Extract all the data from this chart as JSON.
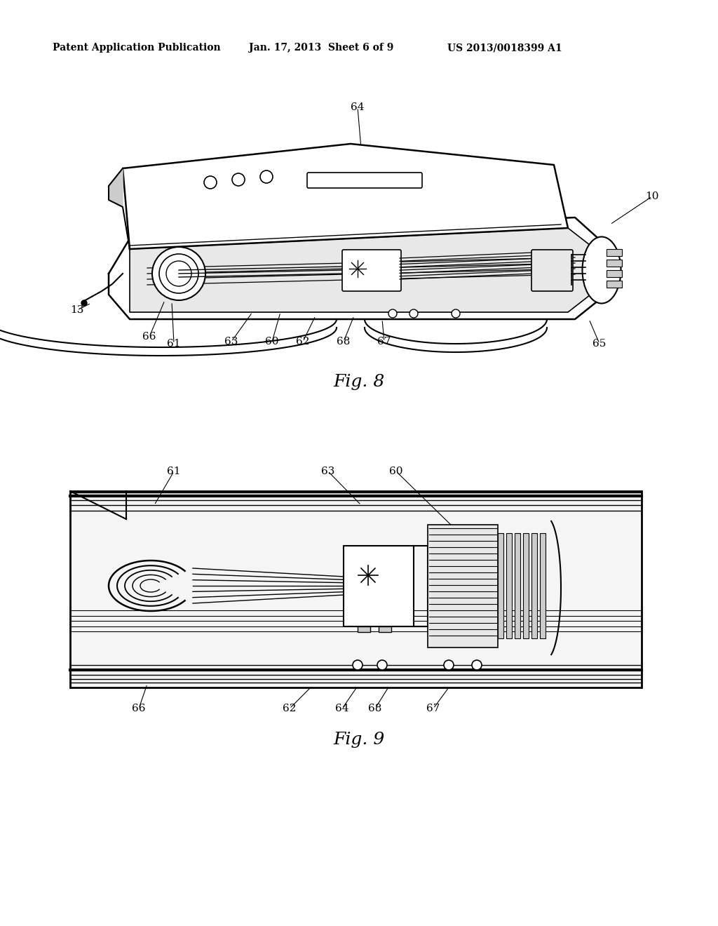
{
  "header_left": "Patent Application Publication",
  "header_mid": "Jan. 17, 2013  Sheet 6 of 9",
  "header_right": "US 2013/0018399 A1",
  "fig8_caption": "Fig. 8",
  "fig9_caption": "Fig. 9",
  "bg": "#ffffff",
  "lc": "#000000",
  "gray_light": "#e8e8e8",
  "gray_mid": "#cccccc",
  "gray_dark": "#888888"
}
